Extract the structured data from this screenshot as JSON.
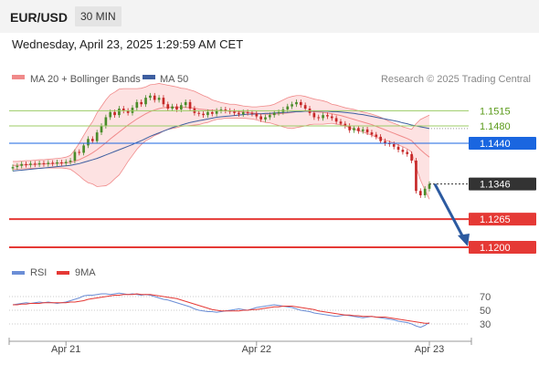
{
  "header": {
    "symbol": "EUR/USD",
    "timeframe": "30 MIN",
    "timestamp": "Wednesday, April 23, 2025 1:29:59 AM CET"
  },
  "legend": {
    "bollinger": "MA 20 + Bollinger Bands",
    "ma50": "MA 50",
    "copyright": "Research © 2025 Trading Central"
  },
  "colors": {
    "candle_up": "#4a8c2a",
    "candle_down": "#c62828",
    "bollinger": "#f08a8a",
    "bollinger_fill": "#fde2e2",
    "ma50": "#3e5fa0",
    "resistance": "#9ccc65",
    "pivot": "#1a66e0",
    "support": "#e53935",
    "current": "#333333",
    "rsi": "#6b8ed6",
    "rsi_ma": "#e53935"
  },
  "chart_data": [
    {
      "type": "candlestick",
      "x_ticks": [
        "Apr 21",
        "Apr 22",
        "Apr 23"
      ],
      "ylim": [
        1.116,
        1.156
      ],
      "levels": [
        {
          "label": "1.1515",
          "value": 1.1515,
          "kind": "resistance"
        },
        {
          "label": "1.1480",
          "value": 1.148,
          "kind": "resistance"
        },
        {
          "label": "1.1440",
          "value": 1.144,
          "kind": "pivot"
        },
        {
          "label": "1.1346",
          "value": 1.1346,
          "kind": "current"
        },
        {
          "label": "1.1265",
          "value": 1.1265,
          "kind": "support"
        },
        {
          "label": "1.1200",
          "value": 1.12,
          "kind": "support"
        }
      ],
      "closes": [
        1.1385,
        1.1388,
        1.1392,
        1.139,
        1.1393,
        1.1391,
        1.1394,
        1.1392,
        1.1395,
        1.1393,
        1.1396,
        1.1394,
        1.1397,
        1.14,
        1.142,
        1.1418,
        1.1435,
        1.145,
        1.1445,
        1.1465,
        1.148,
        1.15,
        1.1512,
        1.1505,
        1.152,
        1.1515,
        1.151,
        1.1522,
        1.1535,
        1.153,
        1.1545,
        1.155,
        1.154,
        1.1545,
        1.153,
        1.152,
        1.1525,
        1.1518,
        1.1528,
        1.1535,
        1.152,
        1.151,
        1.1508,
        1.1505,
        1.1512,
        1.1508,
        1.1515,
        1.1518,
        1.1515,
        1.1513,
        1.151,
        1.1507,
        1.1512,
        1.151,
        1.1508,
        1.1502,
        1.1495,
        1.15,
        1.1505,
        1.151,
        1.1512,
        1.1518,
        1.1525,
        1.153,
        1.1535,
        1.1528,
        1.152,
        1.151,
        1.15,
        1.1498,
        1.1505,
        1.1502,
        1.1498,
        1.149,
        1.1485,
        1.148,
        1.147,
        1.1475,
        1.1468,
        1.1472,
        1.1465,
        1.146,
        1.1455,
        1.1445,
        1.144,
        1.1438,
        1.1432,
        1.1425,
        1.142,
        1.1415,
        1.14,
        1.133,
        1.132,
        1.1335,
        1.1346
      ],
      "bollinger_upper": [
        1.1398,
        1.1398,
        1.1399,
        1.14,
        1.14,
        1.1401,
        1.1402,
        1.1402,
        1.1403,
        1.1404,
        1.1405,
        1.1406,
        1.1408,
        1.1412,
        1.1425,
        1.144,
        1.1458,
        1.1475,
        1.149,
        1.151,
        1.1525,
        1.154,
        1.1552,
        1.1558,
        1.1565,
        1.1566,
        1.1566,
        1.1566,
        1.1566,
        1.1567,
        1.157,
        1.1575,
        1.1576,
        1.1578,
        1.1576,
        1.1574,
        1.1572,
        1.157,
        1.1567,
        1.1566,
        1.1563,
        1.156,
        1.1555,
        1.155,
        1.1546,
        1.154,
        1.1537,
        1.1534,
        1.1532,
        1.153,
        1.153,
        1.1528,
        1.1526,
        1.1525,
        1.1524,
        1.1524,
        1.1525,
        1.1526,
        1.1527,
        1.153,
        1.1535,
        1.154,
        1.1545,
        1.1548,
        1.155,
        1.155,
        1.1548,
        1.1545,
        1.1542,
        1.154,
        1.1538,
        1.1535,
        1.153,
        1.1528,
        1.1525,
        1.1522,
        1.152,
        1.1518,
        1.1515,
        1.1512,
        1.151,
        1.1507,
        1.1504,
        1.15,
        1.1495,
        1.149,
        1.1486,
        1.1482,
        1.1478,
        1.1475,
        1.1472,
        1.1485,
        1.1495,
        1.15,
        1.1505
      ],
      "bollinger_middle": [
        1.1389,
        1.1389,
        1.139,
        1.139,
        1.1391,
        1.1391,
        1.1392,
        1.1392,
        1.1393,
        1.1393,
        1.1394,
        1.1394,
        1.1395,
        1.1396,
        1.1399,
        1.1402,
        1.1407,
        1.1412,
        1.1418,
        1.1425,
        1.1433,
        1.1441,
        1.145,
        1.1458,
        1.1466,
        1.1474,
        1.1482,
        1.1489,
        1.1496,
        1.1502,
        1.1508,
        1.1513,
        1.1517,
        1.152,
        1.1522,
        1.1523,
        1.1523,
        1.1523,
        1.1523,
        1.1523,
        1.1522,
        1.1521,
        1.1519,
        1.1518,
        1.1517,
        1.1516,
        1.1516,
        1.1515,
        1.1515,
        1.1514,
        1.1514,
        1.1513,
        1.1512,
        1.1511,
        1.151,
        1.1509,
        1.1508,
        1.1507,
        1.1507,
        1.1507,
        1.1508,
        1.1509,
        1.151,
        1.1511,
        1.1513,
        1.1514,
        1.1514,
        1.1514,
        1.1513,
        1.1512,
        1.1511,
        1.151,
        1.1508,
        1.1506,
        1.1504,
        1.1501,
        1.1498,
        1.1495,
        1.1492,
        1.1489,
        1.1486,
        1.1483,
        1.1479,
        1.1475,
        1.1471,
        1.1467,
        1.1463,
        1.1459,
        1.1455,
        1.1451,
        1.1446,
        1.1435,
        1.1425,
        1.1416,
        1.1408
      ],
      "bollinger_lower": [
        1.138,
        1.138,
        1.1381,
        1.1381,
        1.1382,
        1.1382,
        1.1382,
        1.1383,
        1.1383,
        1.1383,
        1.1383,
        1.1383,
        1.1382,
        1.138,
        1.1373,
        1.1365,
        1.1356,
        1.1349,
        1.1346,
        1.134,
        1.1341,
        1.1342,
        1.1348,
        1.1358,
        1.1367,
        1.1382,
        1.1398,
        1.1412,
        1.1426,
        1.1437,
        1.1446,
        1.1451,
        1.1458,
        1.1462,
        1.1468,
        1.1472,
        1.1474,
        1.1476,
        1.1479,
        1.148,
        1.1481,
        1.1482,
        1.1483,
        1.1486,
        1.1488,
        1.1492,
        1.1495,
        1.1496,
        1.1498,
        1.1498,
        1.1498,
        1.1498,
        1.1498,
        1.1497,
        1.1496,
        1.1494,
        1.1491,
        1.1488,
        1.1487,
        1.1484,
        1.1481,
        1.1478,
        1.1475,
        1.1474,
        1.1476,
        1.1478,
        1.148,
        1.1483,
        1.1484,
        1.1484,
        1.1484,
        1.1485,
        1.1486,
        1.1484,
        1.1483,
        1.148,
        1.1476,
        1.1472,
        1.1469,
        1.1466,
        1.1462,
        1.1459,
        1.1454,
        1.145,
        1.1447,
        1.1444,
        1.144,
        1.1436,
        1.1432,
        1.1427,
        1.142,
        1.1385,
        1.1355,
        1.1332,
        1.1311
      ],
      "ma50": [
        1.1376,
        1.1377,
        1.1378,
        1.1379,
        1.138,
        1.1381,
        1.1382,
        1.1383,
        1.1384,
        1.1385,
        1.1386,
        1.1387,
        1.1388,
        1.1389,
        1.1391,
        1.1393,
        1.1396,
        1.1399,
        1.1402,
        1.1405,
        1.1409,
        1.1413,
        1.1417,
        1.1421,
        1.1425,
        1.1429,
        1.1433,
        1.1437,
        1.1442,
        1.1446,
        1.1451,
        1.1456,
        1.146,
        1.1464,
        1.1468,
        1.1472,
        1.1476,
        1.1479,
        1.1482,
        1.1485,
        1.1488,
        1.149,
        1.1492,
        1.1494,
        1.1496,
        1.1498,
        1.15,
        1.1501,
        1.1502,
        1.1503,
        1.1504,
        1.1505,
        1.1506,
        1.1507,
        1.1507,
        1.1508,
        1.1508,
        1.1509,
        1.1509,
        1.151,
        1.151,
        1.1511,
        1.1511,
        1.1512,
        1.1513,
        1.1513,
        1.1514,
        1.1514,
        1.1514,
        1.1514,
        1.1514,
        1.1514,
        1.1513,
        1.1513,
        1.1512,
        1.1511,
        1.151,
        1.1509,
        1.1507,
        1.1506,
        1.1504,
        1.1502,
        1.15,
        1.1498,
        1.1496,
        1.1494,
        1.1492,
        1.149,
        1.1487,
        1.1485,
        1.1482,
        1.148,
        1.1478,
        1.1476,
        1.1474
      ],
      "forecast_arrow": {
        "from": 1.1346,
        "to": 1.12
      }
    },
    {
      "type": "line",
      "legend": [
        "RSI",
        "9MA"
      ],
      "y_ticks": [
        "70",
        "50",
        "30"
      ],
      "ylim": [
        10,
        90
      ],
      "rsi": [
        58,
        59,
        60,
        61,
        60,
        61,
        62,
        61,
        62,
        61,
        60,
        61,
        62,
        64,
        66,
        68,
        71,
        72,
        72,
        73,
        74,
        74,
        73,
        74,
        75,
        74,
        73,
        74,
        73,
        72,
        73,
        72,
        70,
        68,
        66,
        65,
        63,
        61,
        59,
        57,
        55,
        52,
        50,
        49,
        48,
        48,
        47,
        48,
        49,
        50,
        51,
        52,
        51,
        50,
        52,
        54,
        55,
        56,
        57,
        58,
        57,
        56,
        55,
        54,
        52,
        50,
        49,
        48,
        46,
        45,
        44,
        43,
        42,
        41,
        42,
        43,
        42,
        41,
        40,
        39,
        40,
        41,
        40,
        39,
        38,
        37,
        36,
        34,
        33,
        32,
        30,
        27,
        25,
        28,
        32
      ],
      "rsi_ma": [
        58,
        58,
        59,
        59,
        60,
        60,
        60,
        61,
        61,
        61,
        61,
        61,
        61,
        62,
        62,
        63,
        64,
        66,
        67,
        68,
        69,
        70,
        71,
        72,
        72,
        73,
        73,
        73,
        74,
        73,
        73,
        73,
        72,
        71,
        70,
        69,
        68,
        67,
        65,
        63,
        61,
        59,
        57,
        55,
        53,
        51,
        50,
        49,
        49,
        49,
        49,
        49,
        50,
        50,
        51,
        51,
        52,
        53,
        54,
        55,
        55,
        56,
        56,
        56,
        55,
        54,
        53,
        52,
        51,
        49,
        48,
        47,
        46,
        45,
        44,
        43,
        43,
        42,
        42,
        41,
        41,
        41,
        40,
        40,
        40,
        39,
        38,
        37,
        36,
        35,
        34,
        33,
        32,
        31,
        31
      ]
    }
  ]
}
